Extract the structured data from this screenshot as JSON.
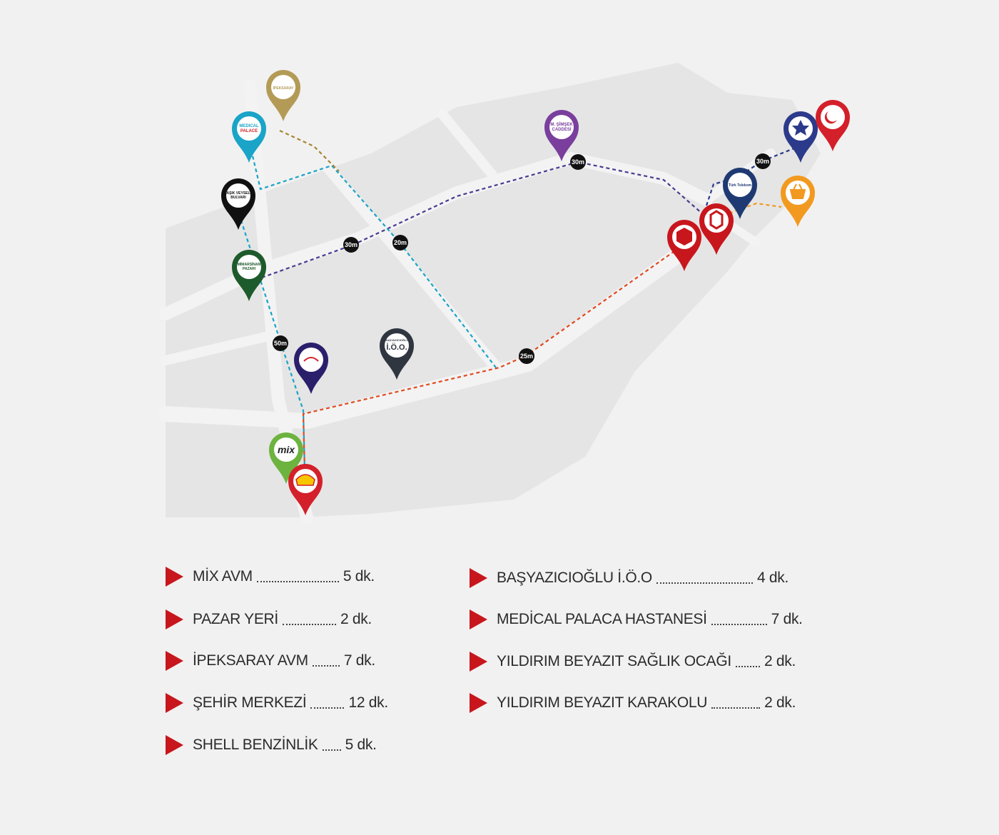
{
  "map": {
    "pins": [
      {
        "id": "ipeksaray",
        "color": "#b39b57",
        "label": [
          "İPEKSARAY"
        ]
      },
      {
        "id": "medical",
        "color": "#1aa4c7",
        "label": [
          "MEDICAL",
          "PALACE"
        ]
      },
      {
        "id": "asik",
        "color": "#111111",
        "label": [
          "AŞIK VEYSEL",
          "BULVARI"
        ]
      },
      {
        "id": "mimarsinan",
        "color": "#1d5a2c",
        "label": [
          "MİMARSİNAN",
          "PAZARI"
        ]
      },
      {
        "id": "simsek",
        "color": "#7a3e9d",
        "label": [
          "M. ŞİMŞEK",
          "CADDESİ"
        ]
      },
      {
        "id": "polis",
        "color": "#2b3a8a",
        "label": []
      },
      {
        "id": "saglik",
        "color": "#d3202a",
        "label": []
      },
      {
        "id": "telekom",
        "color": "#1f3a72",
        "label": [
          "Türk Telekom"
        ]
      },
      {
        "id": "market",
        "color": "#f29a1f",
        "label": []
      },
      {
        "id": "brand1",
        "color": "#c8161d",
        "label": []
      },
      {
        "id": "brand2",
        "color": "#c8161d",
        "label": []
      },
      {
        "id": "school",
        "color": "#2f3640",
        "label": [
          "BAŞYAZICIOĞLU",
          "İ.Ö.O."
        ]
      },
      {
        "id": "dark",
        "color": "#2a1f6b",
        "label": []
      },
      {
        "id": "mix",
        "color": "#6db33f",
        "label": [
          "mix"
        ]
      },
      {
        "id": "shell",
        "color": "#d3202a",
        "label": []
      }
    ],
    "badges": [
      "30m",
      "20m",
      "30m",
      "30m",
      "50m",
      "25m"
    ]
  },
  "legend": {
    "left": [
      {
        "name": "MİX AVM",
        "time": "5 dk."
      },
      {
        "name": "PAZAR YERİ",
        "time": "2 dk."
      },
      {
        "name": "İPEKSARAY AVM",
        "time": "7 dk."
      },
      {
        "name": "ŞEHİR MERKEZİ",
        "time": "12 dk."
      },
      {
        "name": "SHELL BENZİNLİK",
        "time": "5 dk."
      }
    ],
    "right": [
      {
        "name": "BAŞYAZICIOĞLU İ.Ö.O",
        "time": "4 dk."
      },
      {
        "name": "MEDİCAL PALACA HASTANESİ",
        "time": "7 dk."
      },
      {
        "name": "YILDIRIM BEYAZIT SAĞLIK OCAĞI",
        "time": "2 dk."
      },
      {
        "name": "YILDIRIM BEYAZIT KARAKOLU",
        "time": "2 dk."
      }
    ]
  }
}
